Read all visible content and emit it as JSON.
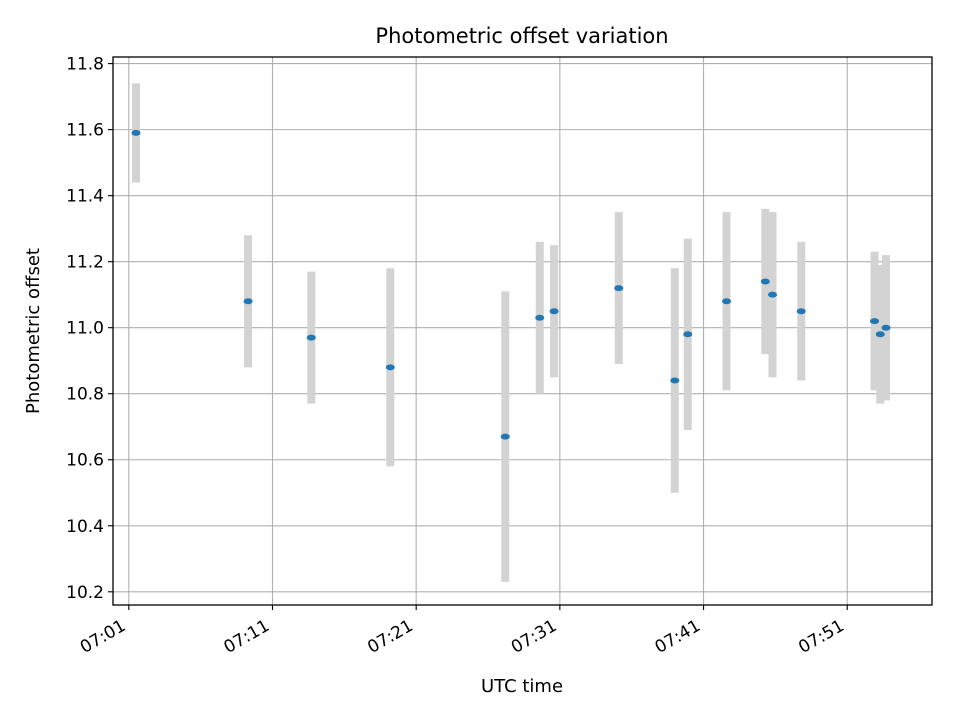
{
  "chart_data": {
    "type": "scatter",
    "title": "Photometric offset variation",
    "xlabel": "UTC time",
    "ylabel": "Photometric offset",
    "x_tick_labels": [
      "07:01",
      "07:11",
      "07:21",
      "07:31",
      "07:41",
      "07:51"
    ],
    "y_tick_labels": [
      "10.2",
      "10.4",
      "10.6",
      "10.8",
      "11.0",
      "11.2",
      "11.4",
      "11.6",
      "11.8"
    ],
    "xlim": [
      "06:59.9",
      "07:56.9"
    ],
    "ylim": [
      10.16,
      11.82
    ],
    "grid": true,
    "colors": {
      "marker": "#1f77b4",
      "errorbar": "#d3d3d3",
      "grid": "#b0b0b0"
    },
    "series": [
      {
        "points": [
          {
            "x": "07:01.5",
            "y": 11.59,
            "yerr": 0.15
          },
          {
            "x": "07:09.3",
            "y": 11.08,
            "yerr": 0.2
          },
          {
            "x": "07:13.7",
            "y": 10.97,
            "yerr": 0.2
          },
          {
            "x": "07:19.2",
            "y": 10.88,
            "yerr": 0.3
          },
          {
            "x": "07:27.2",
            "y": 10.67,
            "yerr": 0.44
          },
          {
            "x": "07:29.6",
            "y": 11.03,
            "yerr": 0.23
          },
          {
            "x": "07:30.6",
            "y": 11.05,
            "yerr": 0.2
          },
          {
            "x": "07:35.1",
            "y": 11.12,
            "yerr": 0.23
          },
          {
            "x": "07:39.0",
            "y": 10.84,
            "yerr": 0.34
          },
          {
            "x": "07:39.9",
            "y": 10.98,
            "yerr": 0.29
          },
          {
            "x": "07:42.6",
            "y": 11.08,
            "yerr": 0.27
          },
          {
            "x": "07:45.3",
            "y": 11.14,
            "yerr": 0.22
          },
          {
            "x": "07:45.8",
            "y": 11.1,
            "yerr": 0.25
          },
          {
            "x": "07:47.8",
            "y": 11.05,
            "yerr": 0.21
          },
          {
            "x": "07:52.9",
            "y": 11.02,
            "yerr": 0.21
          },
          {
            "x": "07:53.3",
            "y": 10.98,
            "yerr": 0.21
          },
          {
            "x": "07:53.7",
            "y": 11.0,
            "yerr": 0.22
          }
        ]
      }
    ]
  }
}
